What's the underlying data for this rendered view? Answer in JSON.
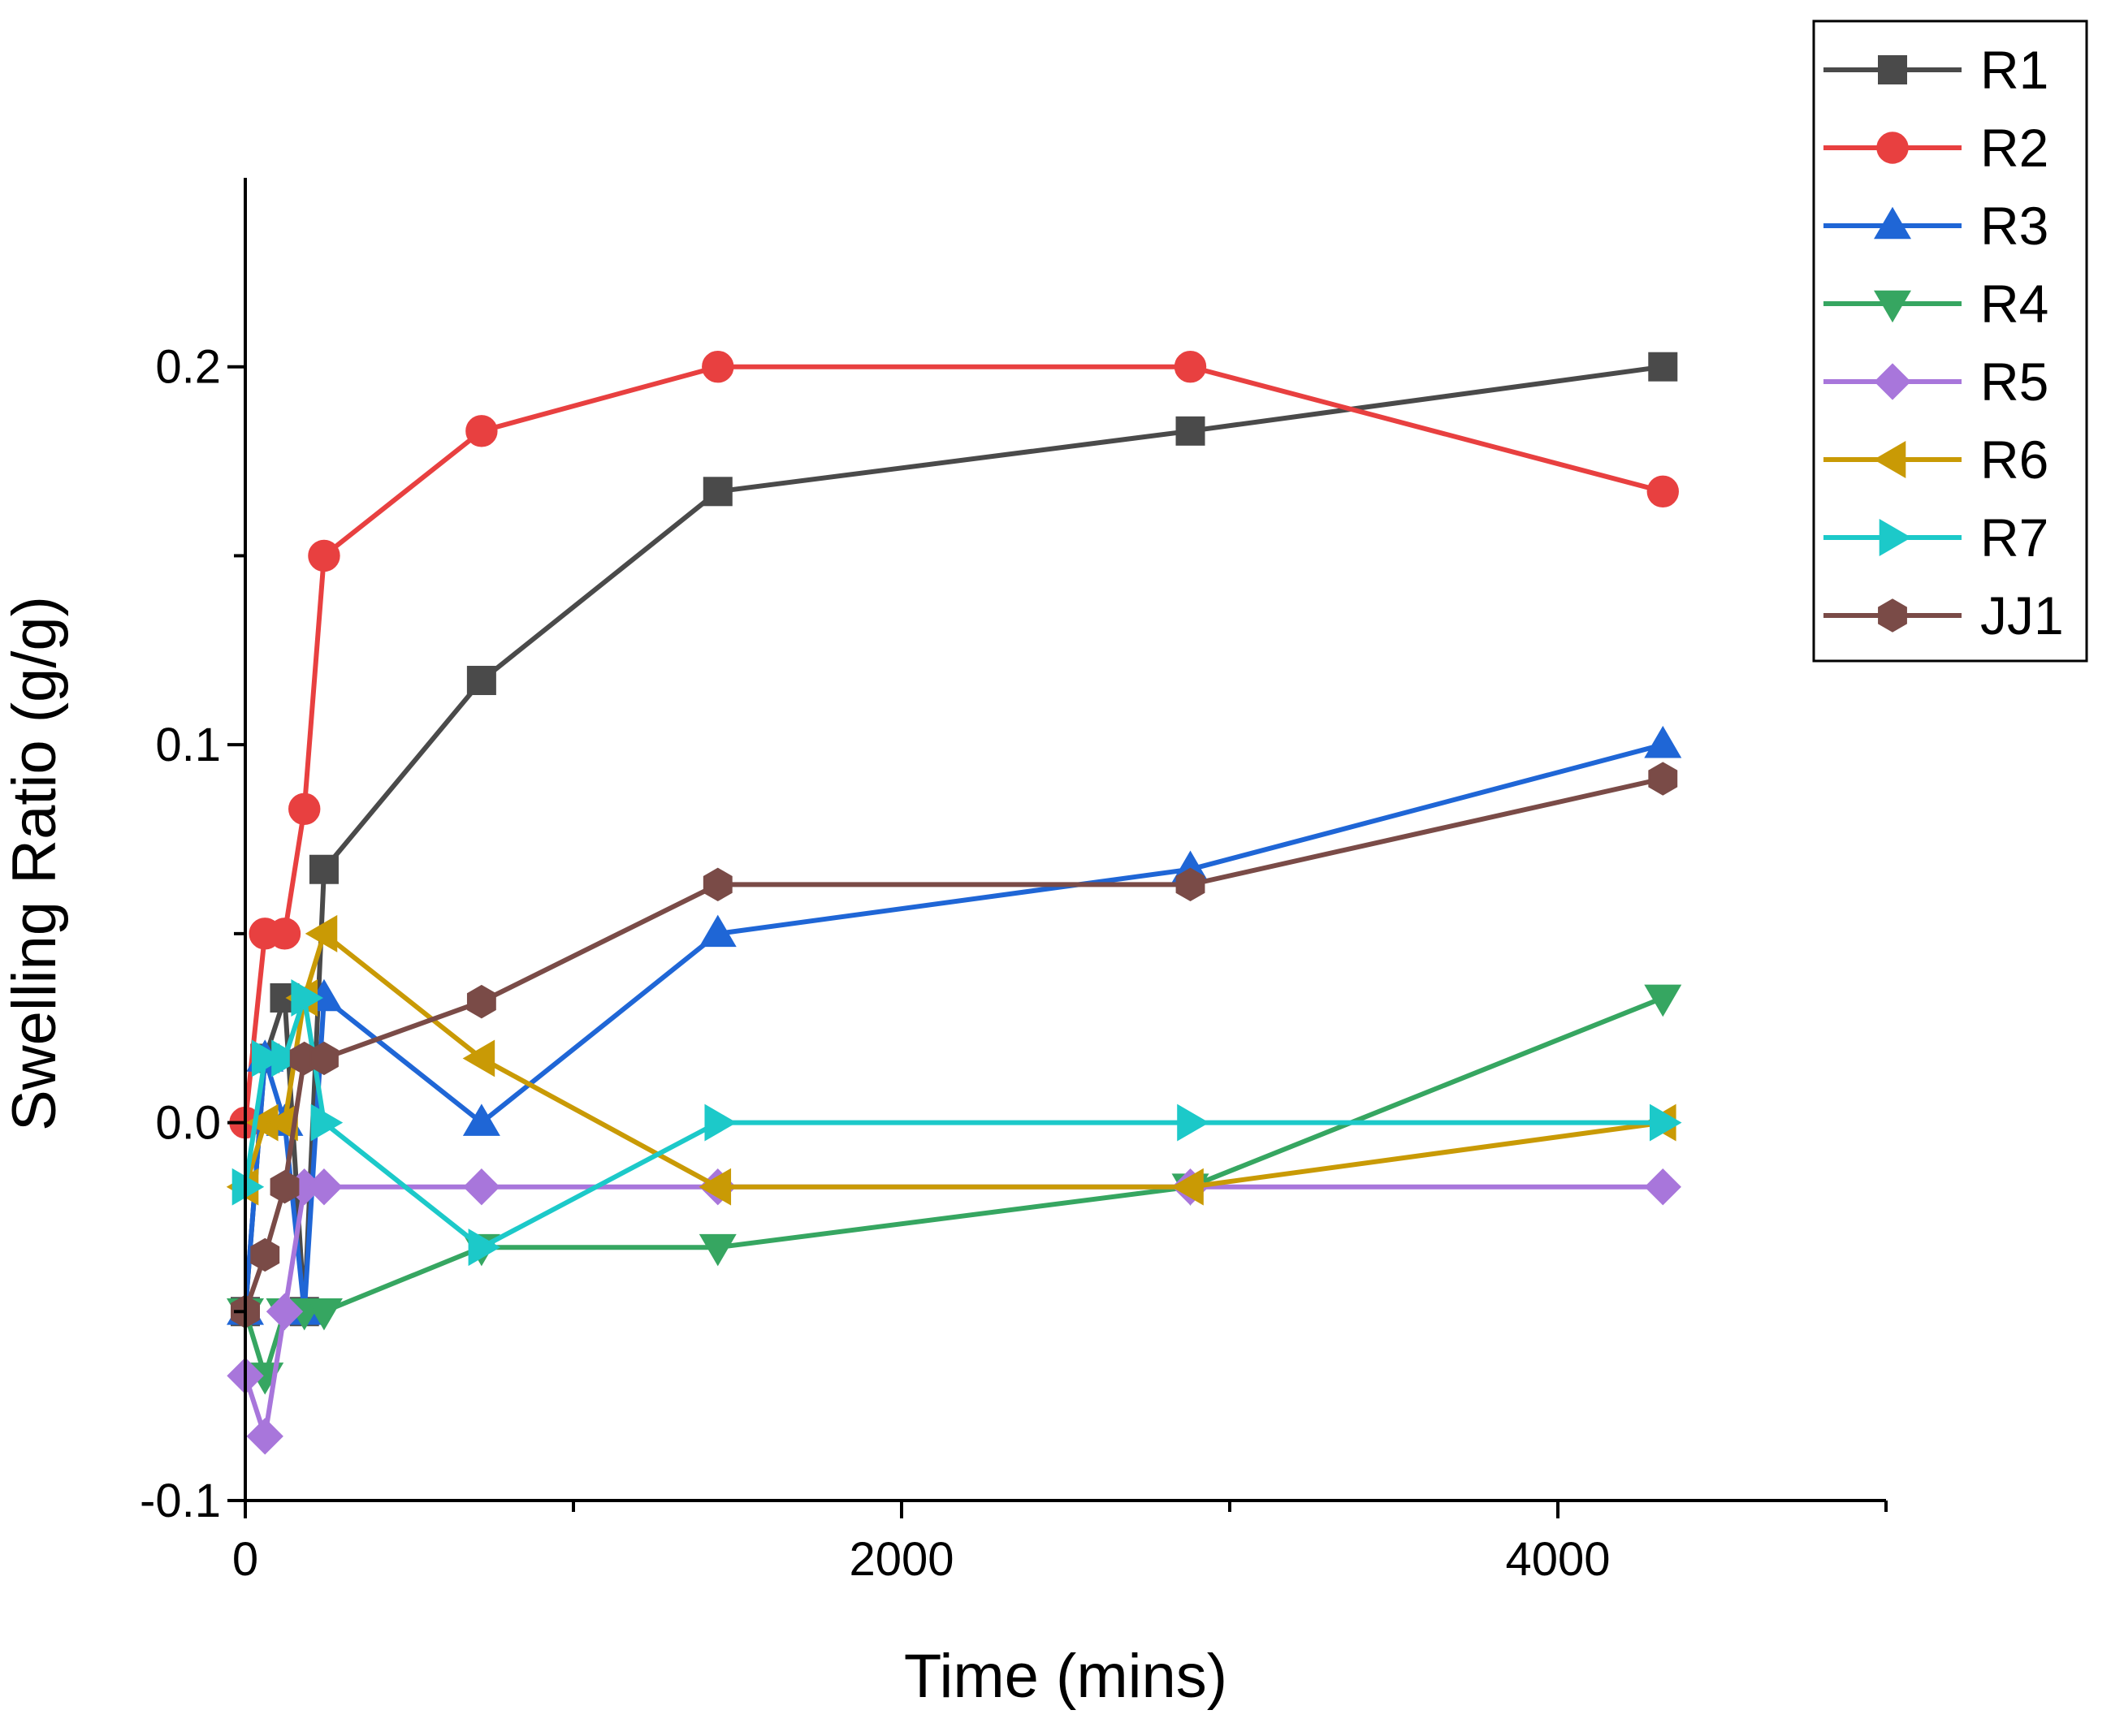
{
  "chart_data": {
    "type": "line",
    "title": "",
    "xlabel": "Time (mins)",
    "ylabel": "Swelling Ratio (g/g)",
    "xlim": [
      0,
      5000
    ],
    "ylim": [
      -0.1,
      0.25
    ],
    "x_major_ticks": [
      0,
      2000,
      4000
    ],
    "x_minor_ticks": [
      1000,
      3000,
      5000
    ],
    "x_tick_labels": [
      "0",
      "2000",
      "4000"
    ],
    "y_major_ticks": [
      -0.1,
      0.0,
      0.1,
      0.2
    ],
    "y_minor_ticks": [
      -0.05,
      0.05,
      0.15
    ],
    "y_tick_labels": [
      "-0.1",
      "0.0",
      "0.1",
      "0.2"
    ],
    "grid": false,
    "legend_position": "top-right",
    "series": [
      {
        "name": "R1",
        "color": "#4a4a4a",
        "marker": "square",
        "points": [
          [
            0,
            -0.05
          ],
          [
            60,
            0.017
          ],
          [
            120,
            0.033
          ],
          [
            180,
            -0.05
          ],
          [
            240,
            0.067
          ],
          [
            720,
            0.117
          ],
          [
            1440,
            0.167
          ],
          [
            2880,
            0.183
          ],
          [
            4320,
            0.2
          ]
        ]
      },
      {
        "name": "R2",
        "color": "#e84040",
        "marker": "circle",
        "points": [
          [
            0,
            0.0
          ],
          [
            60,
            0.05
          ],
          [
            120,
            0.05
          ],
          [
            180,
            0.083
          ],
          [
            240,
            0.15
          ],
          [
            720,
            0.183
          ],
          [
            1440,
            0.2
          ],
          [
            2880,
            0.2
          ],
          [
            4320,
            0.167
          ]
        ]
      },
      {
        "name": "R3",
        "color": "#1f66d6",
        "marker": "triangle-up",
        "points": [
          [
            0,
            -0.05
          ],
          [
            60,
            0.017
          ],
          [
            120,
            0.0
          ],
          [
            180,
            -0.05
          ],
          [
            240,
            0.033
          ],
          [
            720,
            0.0
          ],
          [
            1440,
            0.05
          ],
          [
            2880,
            0.067
          ],
          [
            4320,
            0.1
          ]
        ]
      },
      {
        "name": "R4",
        "color": "#36a661",
        "marker": "triangle-down",
        "points": [
          [
            0,
            -0.05
          ],
          [
            60,
            -0.067
          ],
          [
            120,
            -0.05
          ],
          [
            180,
            -0.05
          ],
          [
            240,
            -0.05
          ],
          [
            720,
            -0.033
          ],
          [
            1440,
            -0.033
          ],
          [
            2880,
            -0.017
          ],
          [
            4320,
            0.033
          ]
        ]
      },
      {
        "name": "R5",
        "color": "#a876db",
        "marker": "diamond",
        "points": [
          [
            0,
            -0.067
          ],
          [
            60,
            -0.083
          ],
          [
            120,
            -0.05
          ],
          [
            180,
            -0.017
          ],
          [
            240,
            -0.017
          ],
          [
            720,
            -0.017
          ],
          [
            1440,
            -0.017
          ],
          [
            2880,
            -0.017
          ],
          [
            4320,
            -0.017
          ]
        ]
      },
      {
        "name": "R6",
        "color": "#c99a05",
        "marker": "triangle-left",
        "points": [
          [
            0,
            -0.017
          ],
          [
            60,
            0.0
          ],
          [
            120,
            0.0
          ],
          [
            180,
            0.033
          ],
          [
            240,
            0.05
          ],
          [
            720,
            0.017
          ],
          [
            1440,
            -0.017
          ],
          [
            2880,
            -0.017
          ],
          [
            4320,
            0.0
          ]
        ]
      },
      {
        "name": "R7",
        "color": "#1cc9c9",
        "marker": "triangle-right",
        "points": [
          [
            0,
            -0.017
          ],
          [
            60,
            0.017
          ],
          [
            120,
            0.017
          ],
          [
            180,
            0.033
          ],
          [
            240,
            0.0
          ],
          [
            720,
            -0.033
          ],
          [
            1440,
            0.0
          ],
          [
            2880,
            0.0
          ],
          [
            4320,
            0.0
          ]
        ]
      },
      {
        "name": "JJ1",
        "color": "#7a4b47",
        "marker": "hexagon",
        "points": [
          [
            0,
            -0.05
          ],
          [
            60,
            -0.035
          ],
          [
            120,
            -0.017
          ],
          [
            180,
            0.017
          ],
          [
            240,
            0.017
          ],
          [
            720,
            0.032
          ],
          [
            1440,
            0.063
          ],
          [
            2880,
            0.063
          ],
          [
            4320,
            0.091
          ]
        ]
      }
    ]
  }
}
